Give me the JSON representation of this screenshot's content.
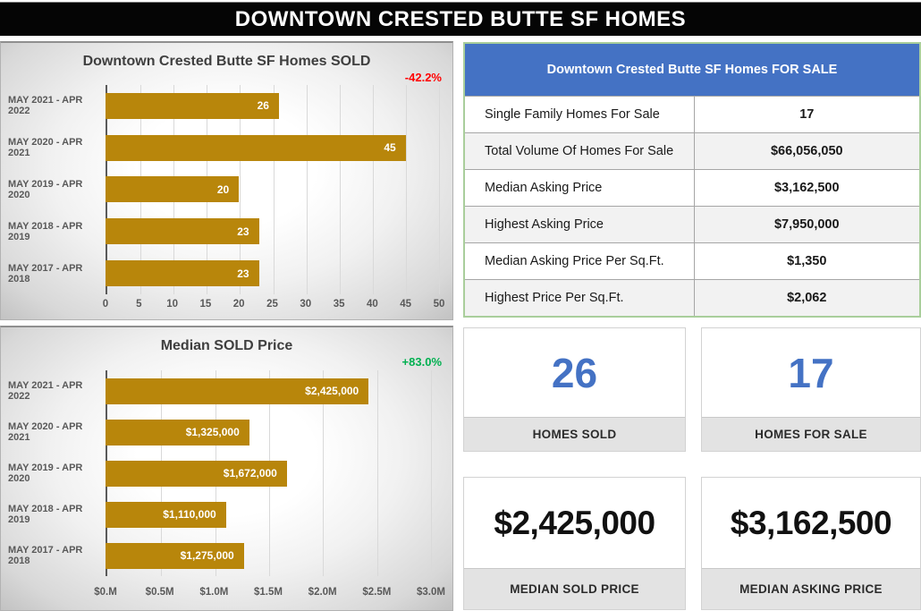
{
  "header": {
    "title": "DOWNTOWN CRESTED BUTTE SF HOMES"
  },
  "colors": {
    "accent_blue": "#4472C4",
    "bar_gold": "#B8860B",
    "decrease_red": "#FF0000",
    "increase_green": "#00B050"
  },
  "chart_data": [
    {
      "type": "bar",
      "orientation": "horizontal",
      "title": "Downtown Crested Butte SF Homes SOLD",
      "change_label": "-42.2%",
      "change_color": "#FF0000",
      "categories": [
        "MAY 2021 - APR 2022",
        "MAY 2020 - APR 2021",
        "MAY 2019 - APR 2020",
        "MAY 2018 - APR 2019",
        "MAY 2017 - APR 2018"
      ],
      "values": [
        26,
        45,
        20,
        23,
        23
      ],
      "value_labels": [
        "26",
        "45",
        "20",
        "23",
        "23"
      ],
      "xlim": [
        0,
        50
      ],
      "x_ticks": [
        "0",
        "5",
        "10",
        "15",
        "20",
        "25",
        "30",
        "35",
        "40",
        "45",
        "50"
      ],
      "bar_color": "#B8860B",
      "grid": true,
      "legend": "none"
    },
    {
      "type": "bar",
      "orientation": "horizontal",
      "title": "Median SOLD Price",
      "change_label": "+83.0%",
      "change_color": "#00B050",
      "categories": [
        "MAY 2021 - APR 2022",
        "MAY 2020 - APR 2021",
        "MAY 2019 - APR 2020",
        "MAY 2018 - APR 2019",
        "MAY 2017 - APR 2018"
      ],
      "values": [
        2425000,
        1325000,
        1672000,
        1110000,
        1275000
      ],
      "value_labels": [
        "$2,425,000",
        "$1,325,000",
        "$1,672,000",
        "$1,110,000",
        "$1,275,000"
      ],
      "xlim": [
        0,
        3000000
      ],
      "x_ticks": [
        "$0.M",
        "$0.5M",
        "$1.0M",
        "$1.5M",
        "$2.0M",
        "$2.5M",
        "$3.0M"
      ],
      "bar_color": "#B8860B",
      "grid": true,
      "legend": "none"
    }
  ],
  "for_sale_table": {
    "title": "Downtown Crested Butte SF Homes FOR SALE",
    "rows": [
      {
        "label": "Single Family Homes For Sale",
        "value": "17"
      },
      {
        "label": "Total Volume Of Homes For Sale",
        "value": "$66,056,050"
      },
      {
        "label": "Median Asking Price",
        "value": "$3,162,500"
      },
      {
        "label": "Highest Asking Price",
        "value": "$7,950,000"
      },
      {
        "label": "Median Asking Price Per Sq.Ft.",
        "value": "$1,350"
      },
      {
        "label": "Highest Price Per Sq.Ft.",
        "value": "$2,062"
      }
    ]
  },
  "stat_cards": [
    {
      "value": "26",
      "label": "HOMES SOLD",
      "value_color": "#4472C4"
    },
    {
      "value": "17",
      "label": "HOMES FOR SALE",
      "value_color": "#4472C4"
    },
    {
      "value": "$2,425,000",
      "label": "MEDIAN SOLD PRICE",
      "value_color": "#111111"
    },
    {
      "value": "$3,162,500",
      "label": "MEDIAN ASKING PRICE",
      "value_color": "#111111"
    }
  ]
}
